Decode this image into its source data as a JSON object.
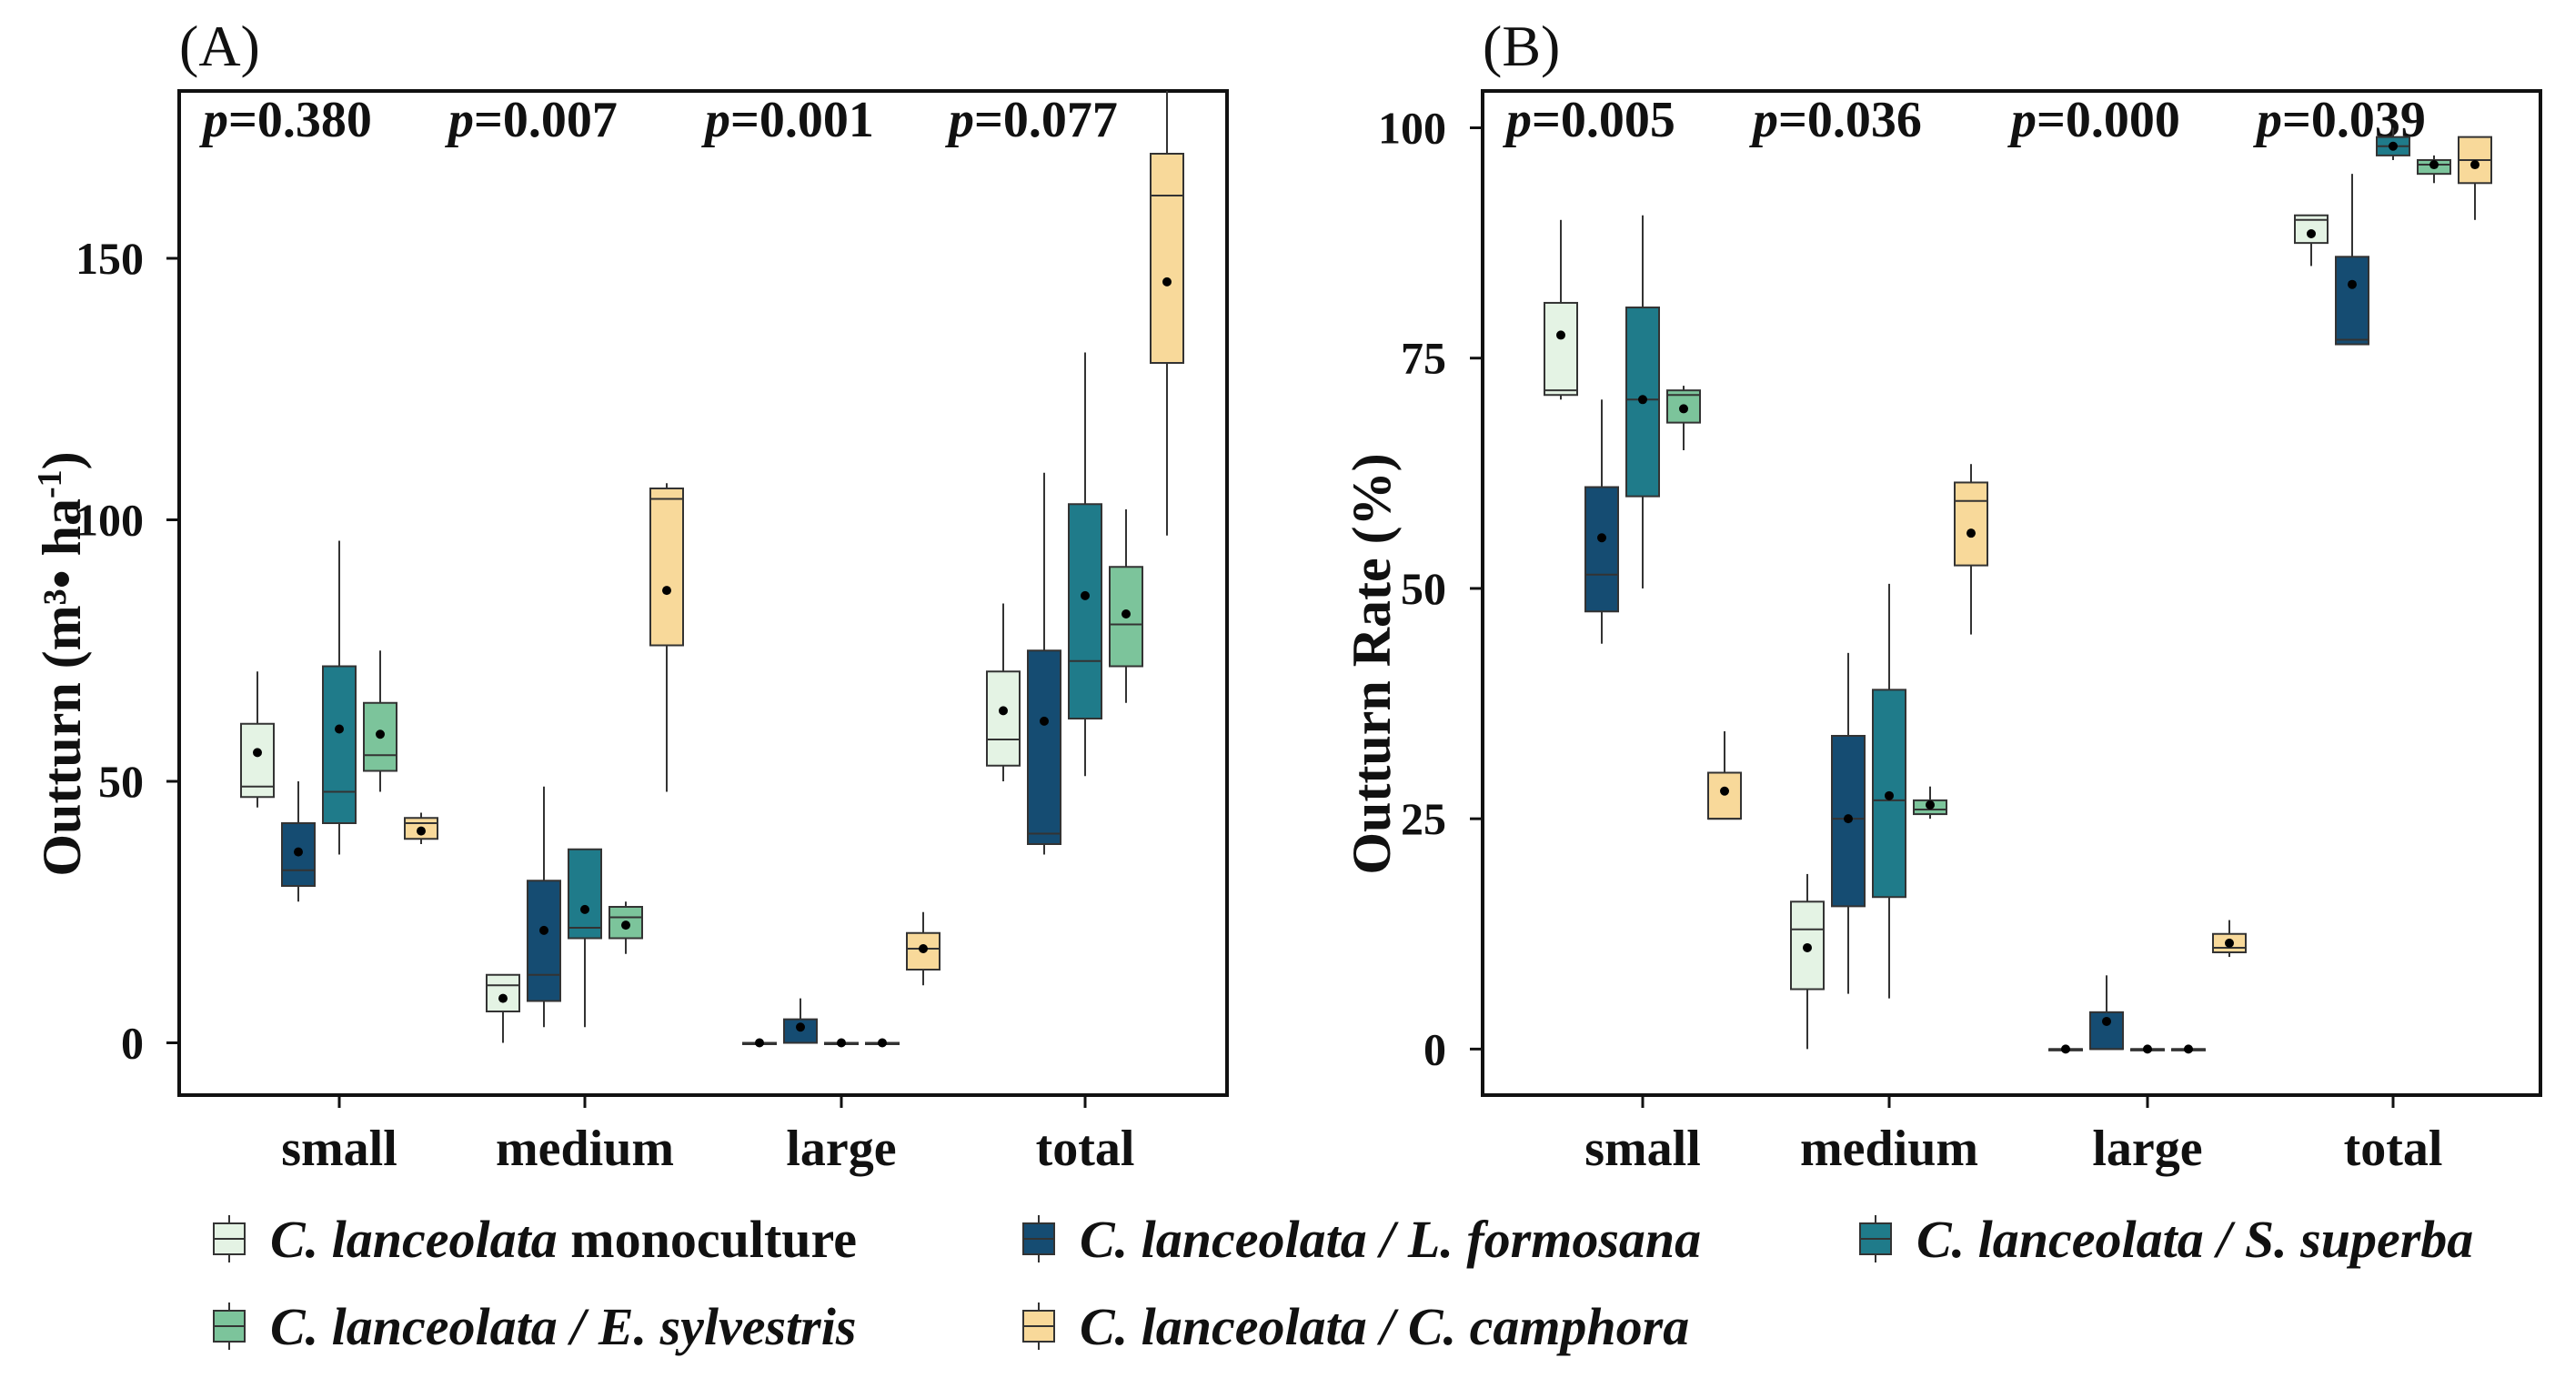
{
  "chart_data": [
    {
      "type": "box",
      "panel_label": "(A)",
      "ylabel": {
        "main": "Outturn (m³• ha",
        "sup": "-1",
        "close": ")"
      },
      "categories": [
        "small",
        "medium",
        "large",
        "total"
      ],
      "p_values": [
        "0.380",
        "0.007",
        "0.001",
        "0.077"
      ],
      "ylim": [
        -10,
        182
      ],
      "yticks": [
        0,
        50,
        100,
        150
      ],
      "series": [
        {
          "name": "C. lanceolata monoculture",
          "color": "#e4f3e4",
          "boxes": [
            {
              "whislo": 45,
              "q1": 47,
              "med": 49,
              "q3": 61,
              "whishi": 71,
              "mean": 55.5
            },
            {
              "whislo": 0,
              "q1": 6,
              "med": 11,
              "q3": 13,
              "whishi": 13,
              "mean": 8.5
            },
            {
              "whislo": 0,
              "q1": 0,
              "med": 0,
              "q3": 0,
              "whishi": 0,
              "mean": 0
            },
            {
              "whislo": 50,
              "q1": 53,
              "med": 58,
              "q3": 71,
              "whishi": 84,
              "mean": 63.5
            }
          ]
        },
        {
          "name": "C. lanceolata / L. formosana",
          "color": "#154c72",
          "boxes": [
            {
              "whislo": 27,
              "q1": 30,
              "med": 33,
              "q3": 42,
              "whishi": 50,
              "mean": 36.5
            },
            {
              "whislo": 3,
              "q1": 8,
              "med": 13,
              "q3": 31,
              "whishi": 49,
              "mean": 21.5
            },
            {
              "whislo": 0,
              "q1": 0,
              "med": 0,
              "q3": 4.5,
              "whishi": 8.5,
              "mean": 3
            },
            {
              "whislo": 36,
              "q1": 38,
              "med": 40,
              "q3": 75,
              "whishi": 109,
              "mean": 61.5
            }
          ]
        },
        {
          "name": "C. lanceolata / S. superba",
          "color": "#1f7b8a",
          "boxes": [
            {
              "whislo": 36,
              "q1": 42,
              "med": 48,
              "q3": 72,
              "whishi": 96,
              "mean": 60
            },
            {
              "whislo": 3,
              "q1": 20,
              "med": 22,
              "q3": 37,
              "whishi": 37,
              "mean": 25.5
            },
            {
              "whislo": 0,
              "q1": 0,
              "med": 0,
              "q3": 0,
              "whishi": 0,
              "mean": 0
            },
            {
              "whislo": 51,
              "q1": 62,
              "med": 73,
              "q3": 103,
              "whishi": 132,
              "mean": 85.5
            }
          ]
        },
        {
          "name": "C. lanceolata / E. sylvestris",
          "color": "#7cc49b",
          "boxes": [
            {
              "whislo": 48,
              "q1": 52,
              "med": 55,
              "q3": 65,
              "whishi": 75,
              "mean": 59
            },
            {
              "whislo": 17,
              "q1": 20,
              "med": 24,
              "q3": 26,
              "whishi": 27,
              "mean": 22.5
            },
            {
              "whislo": 0,
              "q1": 0,
              "med": 0,
              "q3": 0,
              "whishi": 0,
              "mean": 0
            },
            {
              "whislo": 65,
              "q1": 72,
              "med": 80,
              "q3": 91,
              "whishi": 102,
              "mean": 82
            }
          ]
        },
        {
          "name": "C. lanceolata / C. camphora",
          "color": "#f8d99a",
          "boxes": [
            {
              "whislo": 38,
              "q1": 39,
              "med": 42,
              "q3": 43,
              "whishi": 44,
              "mean": 40.5
            },
            {
              "whislo": 48,
              "q1": 76,
              "med": 104,
              "q3": 106,
              "whishi": 107,
              "mean": 86.5
            },
            {
              "whislo": 11,
              "q1": 14,
              "med": 18,
              "q3": 21,
              "whishi": 25,
              "mean": 18
            },
            {
              "whislo": 97,
              "q1": 130,
              "med": 162,
              "q3": 170,
              "whishi": 182,
              "mean": 145.5
            }
          ]
        }
      ]
    },
    {
      "type": "box",
      "panel_label": "(B)",
      "ylabel": {
        "main": "Outturn Rate (%)"
      },
      "categories": [
        "small",
        "medium",
        "large",
        "total"
      ],
      "p_values": [
        "0.005",
        "0.036",
        "0.000",
        "0.039"
      ],
      "ylim": [
        -5,
        104
      ],
      "yticks": [
        0,
        25,
        50,
        75,
        100
      ],
      "series": [
        {
          "name": "C. lanceolata monoculture",
          "color": "#e4f3e4",
          "boxes": [
            {
              "whislo": 70.5,
              "q1": 71,
              "med": 71.5,
              "q3": 81,
              "whishi": 90,
              "mean": 77.5
            },
            {
              "whislo": 0,
              "q1": 6.5,
              "med": 13,
              "q3": 16,
              "whishi": 19,
              "mean": 11
            },
            {
              "whislo": 0,
              "q1": 0,
              "med": 0,
              "q3": 0,
              "whishi": 0,
              "mean": 0
            },
            {
              "whislo": 85,
              "q1": 87.5,
              "med": 90,
              "q3": 90.5,
              "whishi": 90.5,
              "mean": 88.5
            }
          ]
        },
        {
          "name": "C. lanceolata / L. formosana",
          "color": "#154c72",
          "boxes": [
            {
              "whislo": 44,
              "q1": 47.5,
              "med": 51.5,
              "q3": 61,
              "whishi": 70.5,
              "mean": 55.5
            },
            {
              "whislo": 6,
              "q1": 15.5,
              "med": 25,
              "q3": 34,
              "whishi": 43,
              "mean": 25
            },
            {
              "whislo": 0,
              "q1": 0,
              "med": 0,
              "q3": 4,
              "whishi": 8,
              "mean": 3
            },
            {
              "whislo": 76.5,
              "q1": 76.5,
              "med": 77,
              "q3": 86,
              "whishi": 95,
              "mean": 83
            }
          ]
        },
        {
          "name": "C. lanceolata / S. superba",
          "color": "#1f7b8a",
          "boxes": [
            {
              "whislo": 50,
              "q1": 60,
              "med": 70.5,
              "q3": 80.5,
              "whishi": 90.5,
              "mean": 70.5
            },
            {
              "whislo": 5.5,
              "q1": 16.5,
              "med": 27,
              "q3": 39,
              "whishi": 50.5,
              "mean": 27.5
            },
            {
              "whislo": 0,
              "q1": 0,
              "med": 0,
              "q3": 0,
              "whishi": 0,
              "mean": 0
            },
            {
              "whislo": 96.5,
              "q1": 97,
              "med": 98,
              "q3": 99,
              "whishi": 100,
              "mean": 98
            }
          ]
        },
        {
          "name": "C. lanceolata / E. sylvestris",
          "color": "#7cc49b",
          "boxes": [
            {
              "whislo": 65,
              "q1": 68,
              "med": 71,
              "q3": 71.5,
              "whishi": 72,
              "mean": 69.5
            },
            {
              "whislo": 25,
              "q1": 25.5,
              "med": 26,
              "q3": 27,
              "whishi": 28.5,
              "mean": 26.5
            },
            {
              "whislo": 0,
              "q1": 0,
              "med": 0,
              "q3": 0,
              "whishi": 0,
              "mean": 0
            },
            {
              "whislo": 94,
              "q1": 95,
              "med": 96,
              "q3": 96.5,
              "whishi": 97,
              "mean": 96
            }
          ]
        },
        {
          "name": "C. lanceolata / C. camphora",
          "color": "#f8d99a",
          "boxes": [
            {
              "whislo": 25,
              "q1": 25,
              "med": 25,
              "q3": 30,
              "whishi": 34.5,
              "mean": 28
            },
            {
              "whislo": 45,
              "q1": 52.5,
              "med": 59.5,
              "q3": 61.5,
              "whishi": 63.5,
              "mean": 56
            },
            {
              "whislo": 10,
              "q1": 10.5,
              "med": 11,
              "q3": 12.5,
              "whishi": 14,
              "mean": 11.5
            },
            {
              "whislo": 90,
              "q1": 94,
              "med": 96.5,
              "q3": 99,
              "whishi": 99,
              "mean": 96
            }
          ]
        }
      ]
    }
  ],
  "legend": [
    {
      "italic": "C. lanceolata",
      "rest": " monoculture",
      "color": "#e4f3e4"
    },
    {
      "italic": "C. lanceolata / L. formosana",
      "rest": "",
      "color": "#154c72"
    },
    {
      "italic": "C. lanceolata / S. superba",
      "rest": "",
      "color": "#1f7b8a"
    },
    {
      "italic": "C. lanceolata / E. sylvestris",
      "rest": "",
      "color": "#7cc49b"
    },
    {
      "italic": "C. lanceolata / C. camphora",
      "rest": "",
      "color": "#f8d99a"
    }
  ],
  "p_prefix": "p",
  "p_equals": "="
}
